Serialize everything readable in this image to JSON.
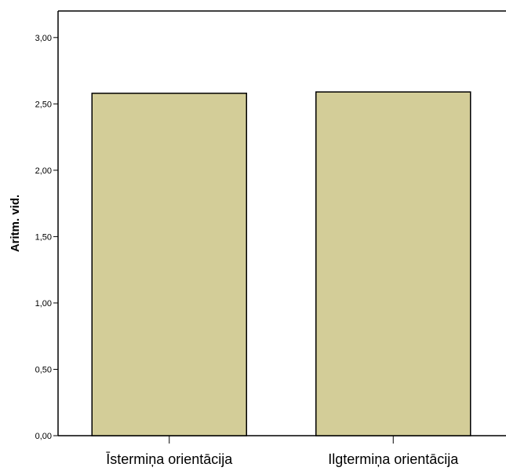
{
  "chart_data": {
    "type": "bar",
    "categories": [
      "Īstermiņa orientācija",
      "Ilgtermiņa orientācija"
    ],
    "values": [
      2.58,
      2.59
    ],
    "title": "",
    "xlabel": "",
    "ylabel": "Aritm. vid.",
    "ylim": [
      0,
      3.2
    ],
    "yticks": [
      0,
      0.5,
      1.0,
      1.5,
      2.0,
      2.5,
      3.0
    ],
    "ytick_labels": [
      "0,00",
      "0,50",
      "1,00",
      "1,50",
      "2,00",
      "2,50",
      "3,00"
    ],
    "bar_color": "#d3cd98",
    "grid": false,
    "legend": "none"
  }
}
